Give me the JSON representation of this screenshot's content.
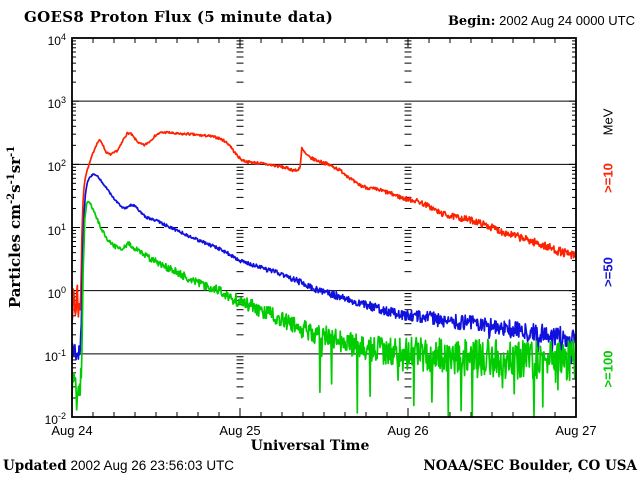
{
  "header": {
    "title": "GOES8 Proton Flux (5 minute data)",
    "begin_label": "Begin:",
    "begin_value": "2002 Aug 24 0000 UTC"
  },
  "footer": {
    "updated_label": "Updated",
    "updated_value": "2002 Aug 26 23:56:03 UTC",
    "credit": "NOAA/SEC Boulder, CO USA"
  },
  "chart_data": {
    "type": "line",
    "title": "GOES8 Proton Flux (5 minute data)",
    "xlabel": "Universal Time",
    "ylabel": {
      "word": "Particles",
      "units": [
        {
          "base": "cm",
          "exp": "-2"
        },
        {
          "base": "s",
          "exp": "-1"
        },
        {
          "base": "sr",
          "exp": "-1"
        }
      ]
    },
    "x_ticks": [
      "Aug 24",
      "Aug 25",
      "Aug 26",
      "Aug 27"
    ],
    "y_tick_exponents": [
      4,
      3,
      2,
      1,
      0,
      -1,
      -2
    ],
    "x_range_days": [
      0,
      3
    ],
    "y_range_log10": [
      -2,
      4
    ],
    "minor_x_step_days": 0.125,
    "gridlines": {
      "solid_exponents": [
        3,
        2,
        0,
        -1
      ],
      "dashed_exponents": [
        1
      ],
      "day_tick_columns_days": [
        1,
        2
      ]
    },
    "right_axis_unit": "MeV",
    "right_axis_labels": [
      {
        "label": "MeV",
        "color": "#000000"
      },
      {
        "label": ">=10",
        "color": "#ff2200"
      },
      {
        "label": ">=50",
        "color": "#1111dd"
      },
      {
        "label": ">=100",
        "color": "#00cc00"
      }
    ],
    "series": [
      {
        "name": ">=10 MeV",
        "color": "#ff2200",
        "points": [
          [
            0,
            0.5
          ],
          [
            0.012,
            0.85
          ],
          [
            0.02,
            0.4
          ],
          [
            0.03,
            1.1
          ],
          [
            0.04,
            0.45
          ],
          [
            0.05,
            0.7
          ],
          [
            0.055,
            2
          ],
          [
            0.06,
            10
          ],
          [
            0.068,
            35
          ],
          [
            0.078,
            60
          ],
          [
            0.088,
            78
          ],
          [
            0.098,
            92
          ],
          [
            0.108,
            112
          ],
          [
            0.118,
            132
          ],
          [
            0.13,
            165
          ],
          [
            0.145,
            205
          ],
          [
            0.158,
            235
          ],
          [
            0.168,
            238
          ],
          [
            0.18,
            215
          ],
          [
            0.2,
            160
          ],
          [
            0.215,
            147
          ],
          [
            0.23,
            143
          ],
          [
            0.25,
            152
          ],
          [
            0.27,
            165
          ],
          [
            0.29,
            200
          ],
          [
            0.31,
            262
          ],
          [
            0.33,
            312
          ],
          [
            0.35,
            305
          ],
          [
            0.37,
            262
          ],
          [
            0.4,
            215
          ],
          [
            0.43,
            200
          ],
          [
            0.46,
            228
          ],
          [
            0.5,
            292
          ],
          [
            0.53,
            318
          ],
          [
            0.57,
            320
          ],
          [
            0.61,
            308
          ],
          [
            0.65,
            300
          ],
          [
            0.69,
            304
          ],
          [
            0.73,
            294
          ],
          [
            0.77,
            286
          ],
          [
            0.81,
            282
          ],
          [
            0.85,
            270
          ],
          [
            0.88,
            256
          ],
          [
            0.91,
            232
          ],
          [
            0.94,
            200
          ],
          [
            0.965,
            158
          ],
          [
            0.99,
            132
          ],
          [
            1.01,
            118
          ],
          [
            1.04,
            110
          ],
          [
            1.08,
            107
          ],
          [
            1.12,
            104
          ],
          [
            1.16,
            100
          ],
          [
            1.2,
            96
          ],
          [
            1.24,
            92
          ],
          [
            1.28,
            87
          ],
          [
            1.31,
            82
          ],
          [
            1.34,
            79
          ],
          [
            1.358,
            92
          ],
          [
            1.368,
            178
          ],
          [
            1.378,
            162
          ],
          [
            1.395,
            142
          ],
          [
            1.415,
            128
          ],
          [
            1.44,
            120
          ],
          [
            1.47,
            112
          ],
          [
            1.5,
            106
          ],
          [
            1.53,
            98
          ],
          [
            1.57,
            88
          ],
          [
            1.61,
            76
          ],
          [
            1.65,
            62
          ],
          [
            1.69,
            50
          ],
          [
            1.73,
            45
          ],
          [
            1.77,
            42
          ],
          [
            1.81,
            40
          ],
          [
            1.85,
            38
          ],
          [
            1.89,
            35
          ],
          [
            1.93,
            32
          ],
          [
            1.97,
            29
          ],
          [
            2.0,
            28
          ],
          [
            2.06,
            26
          ],
          [
            2.12,
            22
          ],
          [
            2.19,
            17
          ],
          [
            2.26,
            15
          ],
          [
            2.32,
            14
          ],
          [
            2.38,
            13
          ],
          [
            2.44,
            11.5
          ],
          [
            2.5,
            10
          ],
          [
            2.56,
            8.6
          ],
          [
            2.62,
            7.6
          ],
          [
            2.68,
            6.8
          ],
          [
            2.74,
            6.0
          ],
          [
            2.8,
            5.3
          ],
          [
            2.85,
            4.7
          ],
          [
            2.9,
            4.2
          ],
          [
            2.95,
            3.8
          ],
          [
            3,
            3.5
          ]
        ],
        "noise_log10": [
          [
            0,
            0.2
          ],
          [
            0.052,
            0.2
          ],
          [
            0.06,
            0.015
          ],
          [
            1,
            0.02
          ],
          [
            1.8,
            0.03
          ],
          [
            2.3,
            0.05
          ],
          [
            3,
            0.07
          ]
        ]
      },
      {
        "name": ">=50 MeV",
        "color": "#1111dd",
        "points": [
          [
            0,
            0.1
          ],
          [
            0.015,
            0.14
          ],
          [
            0.03,
            0.08
          ],
          [
            0.045,
            0.12
          ],
          [
            0.055,
            0.2
          ],
          [
            0.062,
            3
          ],
          [
            0.072,
            18
          ],
          [
            0.082,
            38
          ],
          [
            0.092,
            52
          ],
          [
            0.102,
            60
          ],
          [
            0.115,
            66
          ],
          [
            0.13,
            70
          ],
          [
            0.145,
            67
          ],
          [
            0.16,
            61
          ],
          [
            0.18,
            52
          ],
          [
            0.2,
            44
          ],
          [
            0.22,
            37
          ],
          [
            0.24,
            31
          ],
          [
            0.26,
            27
          ],
          [
            0.28,
            23.5
          ],
          [
            0.3,
            21
          ],
          [
            0.315,
            20
          ],
          [
            0.335,
            21
          ],
          [
            0.355,
            23
          ],
          [
            0.375,
            22
          ],
          [
            0.395,
            19
          ],
          [
            0.415,
            16.5
          ],
          [
            0.445,
            14.5
          ],
          [
            0.475,
            13.3
          ],
          [
            0.5,
            13
          ],
          [
            0.54,
            11.5
          ],
          [
            0.58,
            10.2
          ],
          [
            0.62,
            9.1
          ],
          [
            0.66,
            8.1
          ],
          [
            0.7,
            7.2
          ],
          [
            0.74,
            6.5
          ],
          [
            0.78,
            5.9
          ],
          [
            0.82,
            5.3
          ],
          [
            0.86,
            4.8
          ],
          [
            0.9,
            4.3
          ],
          [
            0.95,
            3.6
          ],
          [
            1,
            3
          ],
          [
            1.05,
            2.7
          ],
          [
            1.1,
            2.45
          ],
          [
            1.15,
            2.2
          ],
          [
            1.2,
            2.0
          ],
          [
            1.25,
            1.8
          ],
          [
            1.3,
            1.6
          ],
          [
            1.35,
            1.4
          ],
          [
            1.4,
            1.2
          ],
          [
            1.45,
            1.05
          ],
          [
            1.5,
            0.95
          ],
          [
            1.55,
            0.87
          ],
          [
            1.6,
            0.8
          ],
          [
            1.65,
            0.73
          ],
          [
            1.7,
            0.66
          ],
          [
            1.75,
            0.6
          ],
          [
            1.8,
            0.55
          ],
          [
            1.85,
            0.5
          ],
          [
            1.9,
            0.46
          ],
          [
            1.95,
            0.43
          ],
          [
            2,
            0.41
          ],
          [
            2.1,
            0.38
          ],
          [
            2.2,
            0.35
          ],
          [
            2.3,
            0.32
          ],
          [
            2.4,
            0.3
          ],
          [
            2.5,
            0.27
          ],
          [
            2.6,
            0.25
          ],
          [
            2.7,
            0.23
          ],
          [
            2.8,
            0.21
          ],
          [
            2.9,
            0.19
          ],
          [
            3,
            0.18
          ]
        ],
        "noise_log10": [
          [
            0,
            0.15
          ],
          [
            0.052,
            0.15
          ],
          [
            0.06,
            0.012
          ],
          [
            1,
            0.03
          ],
          [
            1.8,
            0.07
          ],
          [
            2.3,
            0.12
          ],
          [
            3,
            0.16
          ]
        ],
        "spikes": {
          "after": 2.05,
          "prob": 0.04,
          "depth_log10": 0.45
        }
      },
      {
        "name": ">=100 MeV",
        "color": "#00cc00",
        "points": [
          [
            0,
            0.025
          ],
          [
            0.015,
            0.04
          ],
          [
            0.03,
            0.017
          ],
          [
            0.045,
            0.03
          ],
          [
            0.058,
            0.06
          ],
          [
            0.066,
            2
          ],
          [
            0.076,
            13
          ],
          [
            0.086,
            23
          ],
          [
            0.096,
            27
          ],
          [
            0.106,
            25
          ],
          [
            0.12,
            21
          ],
          [
            0.135,
            17
          ],
          [
            0.15,
            13.5
          ],
          [
            0.165,
            11
          ],
          [
            0.18,
            9
          ],
          [
            0.2,
            7.3
          ],
          [
            0.22,
            6
          ],
          [
            0.24,
            5.3
          ],
          [
            0.26,
            4.9
          ],
          [
            0.28,
            4.7
          ],
          [
            0.3,
            4.6
          ],
          [
            0.32,
            5.1
          ],
          [
            0.34,
            5.5
          ],
          [
            0.36,
            5.1
          ],
          [
            0.38,
            4.5
          ],
          [
            0.42,
            3.9
          ],
          [
            0.46,
            3.3
          ],
          [
            0.5,
            2.9
          ],
          [
            0.55,
            2.45
          ],
          [
            0.6,
            2.1
          ],
          [
            0.65,
            1.8
          ],
          [
            0.7,
            1.55
          ],
          [
            0.75,
            1.35
          ],
          [
            0.8,
            1.2
          ],
          [
            0.85,
            1.05
          ],
          [
            0.9,
            0.9
          ],
          [
            0.95,
            0.76
          ],
          [
            1,
            0.68
          ],
          [
            1.05,
            0.6
          ],
          [
            1.1,
            0.52
          ],
          [
            1.15,
            0.46
          ],
          [
            1.2,
            0.4
          ],
          [
            1.25,
            0.35
          ],
          [
            1.3,
            0.3
          ],
          [
            1.35,
            0.26
          ],
          [
            1.4,
            0.23
          ],
          [
            1.45,
            0.21
          ],
          [
            1.5,
            0.19
          ],
          [
            1.55,
            0.17
          ],
          [
            1.6,
            0.155
          ],
          [
            1.65,
            0.145
          ],
          [
            1.7,
            0.135
          ],
          [
            1.75,
            0.125
          ],
          [
            1.8,
            0.115
          ],
          [
            1.85,
            0.11
          ],
          [
            1.9,
            0.105
          ],
          [
            1.95,
            0.1
          ],
          [
            2,
            0.1
          ],
          [
            2.1,
            0.095
          ],
          [
            2.2,
            0.09
          ],
          [
            2.3,
            0.09
          ],
          [
            2.4,
            0.085
          ],
          [
            2.5,
            0.085
          ],
          [
            2.6,
            0.08
          ],
          [
            2.7,
            0.08
          ],
          [
            2.8,
            0.08
          ],
          [
            2.9,
            0.078
          ],
          [
            3,
            0.08
          ]
        ],
        "noise_log10": [
          [
            0,
            0.22
          ],
          [
            0.055,
            0.22
          ],
          [
            0.063,
            0.02
          ],
          [
            0.6,
            0.06
          ],
          [
            1.2,
            0.12
          ],
          [
            1.8,
            0.22
          ],
          [
            2.2,
            0.3
          ],
          [
            3,
            0.32
          ]
        ],
        "spikes": {
          "after": 1.35,
          "prob": 0.05,
          "depth_log10": 1.1
        }
      }
    ]
  }
}
